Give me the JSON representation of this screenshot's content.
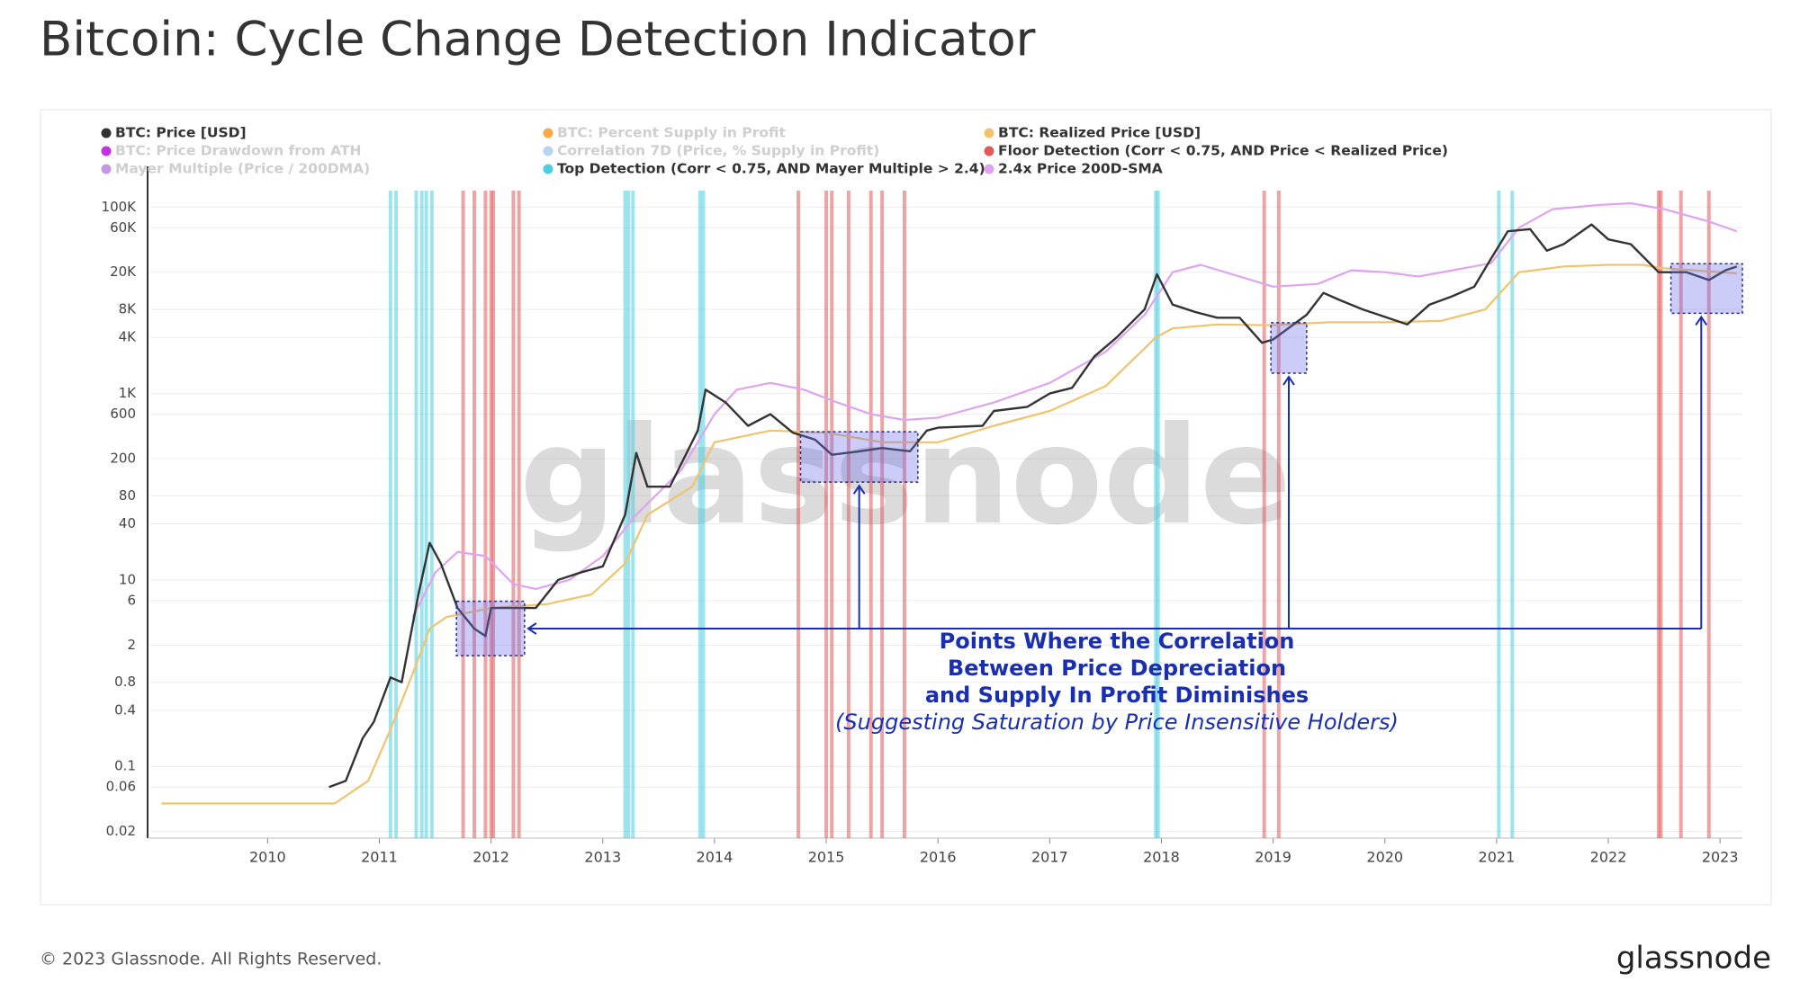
{
  "chart_data": {
    "type": "line",
    "title": "Bitcoin: Cycle Change Detection Indicator",
    "footer": "© 2023 Glassnode. All Rights Reserved.",
    "logo": "glassnode",
    "watermark": "glassnode",
    "log_y": true,
    "grid": true,
    "xlim": [
      2008.95,
      2023.2
    ],
    "xticks": [
      2010,
      2011,
      2012,
      2013,
      2014,
      2015,
      2016,
      2017,
      2018,
      2019,
      2020,
      2021,
      2022,
      2023
    ],
    "ylim": [
      0.017,
      150000
    ],
    "yticks": [
      0.02,
      0.06,
      0.1,
      0.4,
      0.8,
      2,
      6,
      10,
      40,
      80,
      200,
      600,
      {
        "value": 1000,
        "label": "1K"
      },
      {
        "value": 4000,
        "label": "4K"
      },
      {
        "value": 8000,
        "label": "8K"
      },
      {
        "value": 20000,
        "label": "20K"
      },
      {
        "value": 60000,
        "label": "60K"
      },
      {
        "value": 100000,
        "label": "100K"
      }
    ],
    "series": [
      {
        "name": "BTC: Price [USD]",
        "color": "#333333",
        "visible": true,
        "x": [
          2010.55,
          2010.7,
          2010.85,
          2010.95,
          2011.1,
          2011.2,
          2011.35,
          2011.45,
          2011.55,
          2011.7,
          2011.85,
          2011.95,
          2012.0,
          2012.2,
          2012.4,
          2012.6,
          2012.8,
          2013.0,
          2013.2,
          2013.3,
          2013.4,
          2013.6,
          2013.85,
          2013.92,
          2014.1,
          2014.3,
          2014.5,
          2014.7,
          2014.9,
          2015.05,
          2015.3,
          2015.5,
          2015.75,
          2015.9,
          2016.0,
          2016.4,
          2016.5,
          2016.8,
          2017.0,
          2017.2,
          2017.4,
          2017.6,
          2017.85,
          2017.96,
          2018.1,
          2018.3,
          2018.5,
          2018.7,
          2018.9,
          2019.0,
          2019.3,
          2019.45,
          2019.6,
          2019.8,
          2020.2,
          2020.4,
          2020.6,
          2020.8,
          2020.95,
          2021.1,
          2021.3,
          2021.45,
          2021.6,
          2021.85,
          2022.0,
          2022.2,
          2022.45,
          2022.7,
          2022.9,
          2023.05,
          2023.15
        ],
        "values": [
          0.06,
          0.07,
          0.2,
          0.3,
          0.9,
          0.8,
          7,
          25,
          15,
          5,
          3,
          2.5,
          5,
          5,
          5,
          10,
          12,
          14,
          50,
          230,
          100,
          100,
          400,
          1100,
          800,
          450,
          600,
          380,
          320,
          220,
          240,
          260,
          240,
          400,
          430,
          450,
          650,
          720,
          1000,
          1150,
          2500,
          4000,
          8000,
          19000,
          9000,
          7500,
          6500,
          6500,
          3500,
          3800,
          7000,
          12000,
          10000,
          8000,
          5500,
          9000,
          11000,
          14000,
          28000,
          55000,
          58000,
          34000,
          40000,
          65000,
          45000,
          40000,
          20000,
          20000,
          16500,
          21000,
          23000
        ]
      },
      {
        "name": "BTC: Percent Supply in Profit",
        "color": "#f7931a",
        "visible": false
      },
      {
        "name": "BTC: Realized Price [USD]",
        "color": "#f0c36d",
        "visible": true,
        "x": [
          2009.05,
          2010.6,
          2010.9,
          2011.1,
          2011.3,
          2011.45,
          2011.6,
          2012.0,
          2012.5,
          2012.9,
          2013.2,
          2013.4,
          2013.8,
          2014.0,
          2014.5,
          2015.0,
          2015.5,
          2016.0,
          2016.5,
          2017.0,
          2017.5,
          2017.95,
          2018.1,
          2018.5,
          2019.0,
          2019.5,
          2020.0,
          2020.5,
          2020.9,
          2021.2,
          2021.6,
          2022.0,
          2022.3,
          2022.5,
          2023.15
        ],
        "values": [
          0.04,
          0.04,
          0.07,
          0.25,
          1,
          3,
          4,
          5,
          5.5,
          7,
          15,
          50,
          100,
          300,
          400,
          380,
          300,
          300,
          450,
          650,
          1200,
          4000,
          5000,
          5500,
          5400,
          5800,
          5800,
          6000,
          8000,
          20000,
          23000,
          24000,
          24000,
          22000,
          19500
        ]
      },
      {
        "name": "BTC: Price Drawdown from ATH",
        "color": "#b000d8",
        "visible": false
      },
      {
        "name": "Correlation 7D (Price, % Supply in Profit)",
        "color": "#a8c8f0",
        "visible": false
      },
      {
        "name": "Floor Detection (Corr < 0.75, AND Price < Realized Price)",
        "color": "#e05a5a",
        "visible": true,
        "type": "band",
        "x": [
          2011.75,
          2011.85,
          2011.95,
          2012.0,
          2012.02,
          2012.2,
          2012.25,
          2014.75,
          2015.0,
          2015.05,
          2015.2,
          2015.4,
          2015.5,
          2015.7,
          2018.92,
          2019.05,
          2022.45,
          2022.47,
          2022.65,
          2022.9
        ]
      },
      {
        "name": "Mayer Multiple (Price / 200DMA)",
        "color": "#b57edc",
        "visible": false
      },
      {
        "name": "Top Detection (Corr < 0.75, AND Mayer Multiple > 2.4)",
        "color": "#4fcde0",
        "visible": true,
        "type": "band",
        "x": [
          2011.1,
          2011.15,
          2011.33,
          2011.38,
          2011.42,
          2011.47,
          2013.2,
          2013.23,
          2013.27,
          2013.87,
          2013.9,
          2017.95,
          2017.97,
          2021.02,
          2021.14
        ]
      },
      {
        "name": "2.4x Price 200D-SMA",
        "color": "#e0a3f0",
        "visible": true,
        "x": [
          2011.3,
          2011.5,
          2011.7,
          2011.95,
          2012.2,
          2012.4,
          2012.7,
          2013.0,
          2013.3,
          2013.7,
          2014.0,
          2014.2,
          2014.5,
          2014.8,
          2015.1,
          2015.4,
          2015.7,
          2016.0,
          2016.5,
          2017.0,
          2017.5,
          2017.85,
          2018.1,
          2018.35,
          2018.7,
          2019.0,
          2019.4,
          2019.7,
          2020.0,
          2020.3,
          2020.7,
          2020.95,
          2021.2,
          2021.5,
          2021.9,
          2022.2,
          2022.5,
          2022.9,
          2023.15
        ],
        "values": [
          4,
          12,
          20,
          18,
          9,
          8,
          10,
          18,
          50,
          150,
          600,
          1100,
          1300,
          1100,
          800,
          600,
          520,
          550,
          800,
          1300,
          2800,
          7000,
          20000,
          24000,
          18000,
          14000,
          15000,
          21000,
          20000,
          18000,
          22000,
          25000,
          60000,
          95000,
          105000,
          110000,
          95000,
          70000,
          55000
        ]
      }
    ],
    "highlights": [
      {
        "x": [
          2011.69,
          2012.3
        ],
        "y": [
          1.54,
          5.9
        ]
      },
      {
        "x": [
          2014.77,
          2015.82
        ],
        "y": [
          112,
          389
        ]
      },
      {
        "x": [
          2018.98,
          2019.3
        ],
        "y": [
          1650,
          5750
        ]
      },
      {
        "x": [
          2022.56,
          2023.2
        ],
        "y": [
          7250,
          24700
        ]
      }
    ],
    "annotation": [
      "Points Where the Correlation",
      "Between Price Depreciation",
      "and Supply In Profit Diminishes",
      "(Suggesting Saturation by Price Insensitive Holders)"
    ]
  }
}
